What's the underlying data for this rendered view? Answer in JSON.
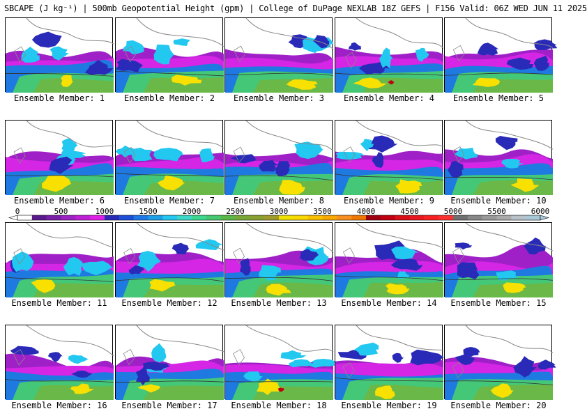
{
  "header": {
    "title": "SBCAPE (J kg⁻¹) | 500mb Geopotential Height (gpm) | College of DuPage NEXLAB 18Z GEFS | F156 Valid: 06Z WED JUN 11 2025"
  },
  "members": [
    {
      "label": "Ensemble Member: 1",
      "seed": 1
    },
    {
      "label": "Ensemble Member: 2",
      "seed": 2
    },
    {
      "label": "Ensemble Member: 3",
      "seed": 3
    },
    {
      "label": "Ensemble Member: 4",
      "seed": 4
    },
    {
      "label": "Ensemble Member: 5",
      "seed": 5
    },
    {
      "label": "Ensemble Member: 6",
      "seed": 6
    },
    {
      "label": "Ensemble Member: 7",
      "seed": 7
    },
    {
      "label": "Ensemble Member: 8",
      "seed": 8
    },
    {
      "label": "Ensemble Member: 9",
      "seed": 9
    },
    {
      "label": "Ensemble Member: 10",
      "seed": 10
    },
    {
      "label": "Ensemble Member: 11",
      "seed": 11
    },
    {
      "label": "Ensemble Member: 12",
      "seed": 12
    },
    {
      "label": "Ensemble Member: 13",
      "seed": 13
    },
    {
      "label": "Ensemble Member: 14",
      "seed": 14
    },
    {
      "label": "Ensemble Member: 15",
      "seed": 15
    },
    {
      "label": "Ensemble Member: 16",
      "seed": 16
    },
    {
      "label": "Ensemble Member: 17",
      "seed": 17
    },
    {
      "label": "Ensemble Member: 18",
      "seed": 18
    },
    {
      "label": "Ensemble Member: 19",
      "seed": 19
    },
    {
      "label": "Ensemble Member: 20",
      "seed": 20
    }
  ],
  "colorbar": {
    "labels": [
      "0",
      "500",
      "1000",
      "1500",
      "2000",
      "2500",
      "3000",
      "3500",
      "4000",
      "4500",
      "5000",
      "5500",
      "6000"
    ],
    "colors": [
      "#ffffff",
      "#5a1a8c",
      "#7a1fa8",
      "#9c22c4",
      "#c01fd8",
      "#e01fe8",
      "#2a2ab8",
      "#1e4fd8",
      "#1f78e8",
      "#1ea0e8",
      "#22c8f0",
      "#3cd8c8",
      "#3cd890",
      "#46c870",
      "#5ab848",
      "#7aa838",
      "#8aa030",
      "#a09a2c",
      "#f0e000",
      "#f8d800",
      "#f8c000",
      "#f8a800",
      "#f89020",
      "#f07800",
      "#a00010",
      "#c00010",
      "#d81018",
      "#e81820",
      "#f82020",
      "#ff3030",
      "#707070",
      "#888888",
      "#9a9a9a",
      "#aaaaaa",
      "#b8c0c8",
      "#a8c8d8"
    ]
  }
}
